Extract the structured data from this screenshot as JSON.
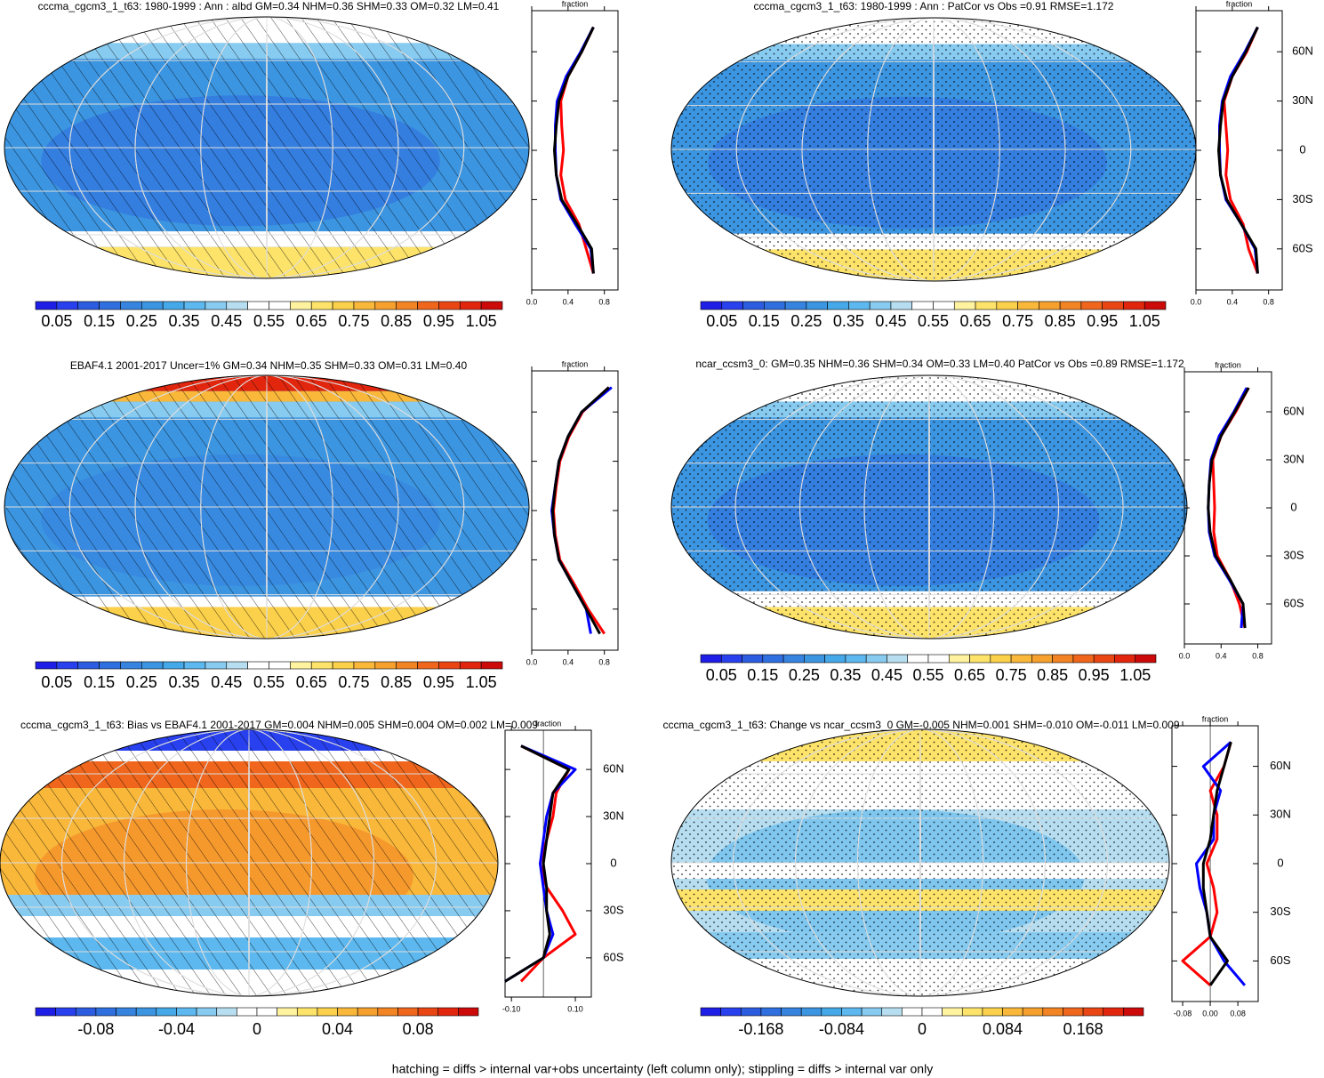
{
  "palette": [
    "#1e1ee6",
    "#2840ee",
    "#2c5ce0",
    "#2f6fe0",
    "#3684e0",
    "#3c95e0",
    "#45a8e8",
    "#5cb8ef",
    "#88cbf0",
    "#b7def0",
    "#ffffff",
    "#ffffff",
    "#fff3a0",
    "#fde36a",
    "#fbd04a",
    "#f9b83a",
    "#f6a02e",
    "#f38424",
    "#ef661c",
    "#ea4614",
    "#e2260e",
    "#cc0a0a"
  ],
  "footnote": "hatching = diffs > internal var+obs uncertainty (left column only); stippling = diffs > internal var only",
  "chart_data": [
    {
      "type": "map_profile",
      "title": "cccma_cgcm3_1_t63: 1980-1999 : Ann : albd GM=0.34 NHM=0.36 SHM=0.33 OM=0.32 LM=0.41",
      "colorbar": {
        "lim": [
          0,
          1.1
        ],
        "ticks": [
          0.05,
          0.15,
          0.25,
          0.35,
          0.45,
          0.55,
          0.65,
          0.75,
          0.85,
          0.95,
          1.05
        ]
      },
      "xlabel": "fraction",
      "xlim": [
        0,
        0.95
      ],
      "xticks": [
        {
          "value": 0,
          "label": "0.0"
        },
        0.4,
        0.8
      ],
      "ylim": [
        -85,
        85
      ],
      "yticks": [
        60,
        30,
        0,
        -30,
        -60
      ],
      "ytick_labels_shown": false,
      "y": [
        -75,
        -60,
        -45,
        -30,
        -15,
        0,
        15,
        30,
        45,
        60,
        75
      ],
      "series": [
        {
          "color": "#ff0000",
          "values": [
            0.68,
            0.6,
            0.52,
            0.37,
            0.32,
            0.35,
            0.33,
            0.32,
            0.4,
            0.55,
            0.68
          ]
        },
        {
          "color": "#0000ff",
          "values": [
            0.68,
            0.65,
            0.48,
            0.32,
            0.27,
            0.26,
            0.26,
            0.28,
            0.38,
            0.54,
            0.68
          ]
        },
        {
          "color": "#000000",
          "values": [
            0.68,
            0.66,
            0.5,
            0.33,
            0.27,
            0.25,
            0.27,
            0.3,
            0.4,
            0.55,
            0.68
          ]
        }
      ]
    },
    {
      "type": "map_profile",
      "title": "cccma_cgcm3_1_t63: 1980-1999 : Ann : PatCor vs Obs =0.91 RMSE=1.172",
      "colorbar": {
        "lim": [
          0,
          1.1
        ],
        "ticks": [
          0.05,
          0.15,
          0.25,
          0.35,
          0.45,
          0.55,
          0.65,
          0.75,
          0.85,
          0.95,
          1.05
        ]
      },
      "xlabel": "fraction",
      "xlim": [
        0,
        0.95
      ],
      "xticks": [
        {
          "value": 0,
          "label": "0.0"
        },
        0.4,
        0.8
      ],
      "ylim": [
        -85,
        85
      ],
      "yticks": [
        {
          "value": 60,
          "label": "60N"
        },
        {
          "value": 30,
          "label": "30N"
        },
        0,
        {
          "value": -30,
          "label": "30S"
        },
        {
          "value": -60,
          "label": "60S"
        }
      ],
      "ytick_labels_shown": true,
      "y": [
        -75,
        -60,
        -45,
        -30,
        -15,
        0,
        15,
        30,
        45,
        60,
        75
      ],
      "series": [
        {
          "color": "#ff0000",
          "values": [
            0.68,
            0.58,
            0.52,
            0.38,
            0.33,
            0.35,
            0.33,
            0.31,
            0.4,
            0.56,
            0.68
          ]
        },
        {
          "color": "#0000ff",
          "values": [
            0.68,
            0.65,
            0.5,
            0.33,
            0.27,
            0.26,
            0.26,
            0.29,
            0.38,
            0.54,
            0.68
          ]
        },
        {
          "color": "#000000",
          "values": [
            0.68,
            0.66,
            0.5,
            0.34,
            0.27,
            0.25,
            0.27,
            0.3,
            0.4,
            0.55,
            0.68
          ]
        }
      ]
    },
    {
      "type": "map_profile",
      "title": "EBAF4.1 2001-2017 Uncer=1% GM=0.34 NHM=0.35 SHM=0.33 OM=0.31 LM=0.40",
      "colorbar": {
        "lim": [
          0,
          1.1
        ],
        "ticks": [
          0.05,
          0.15,
          0.25,
          0.35,
          0.45,
          0.55,
          0.65,
          0.75,
          0.85,
          0.95,
          1.05
        ]
      },
      "xlabel": "fraction",
      "xlim": [
        0,
        0.95
      ],
      "xticks": [
        {
          "value": 0,
          "label": "0.0"
        },
        0.4,
        0.8
      ],
      "ylim": [
        -85,
        85
      ],
      "yticks": [
        60,
        30,
        0,
        -30,
        -60
      ],
      "ytick_labels_shown": false,
      "y": [
        -75,
        -60,
        -45,
        -30,
        -15,
        0,
        15,
        30,
        45,
        60,
        75
      ],
      "series": [
        {
          "color": "#ff0000",
          "values": [
            0.8,
            0.62,
            0.47,
            0.31,
            0.26,
            0.24,
            0.27,
            0.31,
            0.41,
            0.56,
            0.85
          ]
        },
        {
          "color": "#0000ff",
          "values": [
            0.65,
            0.6,
            0.45,
            0.3,
            0.25,
            0.22,
            0.26,
            0.3,
            0.4,
            0.55,
            0.88
          ]
        },
        {
          "color": "#000000",
          "values": [
            0.75,
            0.6,
            0.45,
            0.3,
            0.25,
            0.23,
            0.26,
            0.3,
            0.4,
            0.55,
            0.85
          ]
        }
      ]
    },
    {
      "type": "map_profile",
      "title": "ncar_ccsm3_0: GM=0.35 NHM=0.36 SHM=0.34 OM=0.33 LM=0.40 PatCor vs Obs =0.89 RMSE=1.172",
      "colorbar": {
        "lim": [
          0,
          1.1
        ],
        "ticks": [
          0.05,
          0.15,
          0.25,
          0.35,
          0.45,
          0.55,
          0.65,
          0.75,
          0.85,
          0.95,
          1.05
        ]
      },
      "xlabel": "fraction",
      "xlim": [
        0,
        0.95
      ],
      "xticks": [
        {
          "value": 0,
          "label": "0.0"
        },
        0.4,
        0.8
      ],
      "ylim": [
        -85,
        85
      ],
      "yticks": [
        {
          "value": 60,
          "label": "60N"
        },
        {
          "value": 30,
          "label": "30N"
        },
        0,
        {
          "value": -30,
          "label": "30S"
        },
        {
          "value": -60,
          "label": "60S"
        }
      ],
      "ytick_labels_shown": true,
      "y": [
        -75,
        -60,
        -45,
        -30,
        -15,
        0,
        15,
        30,
        45,
        60,
        75
      ],
      "series": [
        {
          "color": "#ff0000",
          "values": [
            0.66,
            0.6,
            0.5,
            0.36,
            0.32,
            0.33,
            0.32,
            0.31,
            0.4,
            0.56,
            0.7
          ]
        },
        {
          "color": "#0000ff",
          "values": [
            0.62,
            0.64,
            0.49,
            0.33,
            0.27,
            0.26,
            0.27,
            0.29,
            0.38,
            0.54,
            0.68
          ]
        },
        {
          "color": "#000000",
          "values": [
            0.66,
            0.64,
            0.5,
            0.34,
            0.28,
            0.26,
            0.27,
            0.3,
            0.4,
            0.55,
            0.7
          ]
        }
      ]
    },
    {
      "type": "map_profile",
      "title": "cccma_cgcm3_1_t63: Bias vs EBAF4.1 2001-2017 GM=0.004 NHM=0.005 SHM=0.004 OM=0.002 LM=0.009",
      "colorbar": {
        "lim": [
          -0.11,
          0.11
        ],
        "ticks": [
          -0.08,
          -0.04,
          0,
          0.04,
          0.08
        ]
      },
      "xlabel": "fraction",
      "xlim": [
        -0.12,
        0.15
      ],
      "xticks": [
        {
          "value": -0.1,
          "label": "-0.10"
        },
        {
          "value": 0.1,
          "label": "0.10"
        }
      ],
      "ylim": [
        -85,
        85
      ],
      "yticks": [
        {
          "value": 60,
          "label": "60N"
        },
        {
          "value": 30,
          "label": "30N"
        },
        0,
        {
          "value": -30,
          "label": "30S"
        },
        {
          "value": -60,
          "label": "60S"
        }
      ],
      "ytick_labels_shown": true,
      "y": [
        -75,
        -60,
        -45,
        -30,
        -15,
        0,
        15,
        30,
        45,
        60,
        75
      ],
      "series": [
        {
          "color": "#ff0000",
          "values": [
            -0.07,
            0.0,
            0.1,
            0.06,
            0.01,
            -0.01,
            0.01,
            0.03,
            0.04,
            0.08,
            -0.07
          ]
        },
        {
          "color": "#0000ff",
          "values": [
            -0.12,
            0.0,
            0.03,
            0.01,
            0.0,
            -0.01,
            0.0,
            0.01,
            0.03,
            0.1,
            -0.07
          ]
        },
        {
          "color": "#000000",
          "values": [
            -0.12,
            0.0,
            0.02,
            0.01,
            0.01,
            0.0,
            0.01,
            0.02,
            0.03,
            0.08,
            -0.07
          ]
        }
      ]
    },
    {
      "type": "map_profile",
      "title": "cccma_cgcm3_1_t63: Change vs ncar_ccsm3_0 GM=-0.005 NHM=0.001 SHM=-0.010 OM=-0.011 LM=0.009",
      "colorbar": {
        "lim": [
          -0.231,
          0.231
        ],
        "ticks": [
          -0.168,
          -0.084,
          0,
          0.084,
          0.168
        ]
      },
      "xlabel": "fraction",
      "xlim": [
        -0.111,
        0.139
      ],
      "xticks": [
        -0.08,
        {
          "value": 0,
          "label": "0.00"
        },
        0.08
      ],
      "ylim": [
        -85,
        85
      ],
      "yticks": [
        {
          "value": 60,
          "label": "60N"
        },
        {
          "value": 30,
          "label": "30N"
        },
        0,
        {
          "value": -30,
          "label": "30S"
        },
        {
          "value": -60,
          "label": "60S"
        }
      ],
      "ytick_labels_shown": true,
      "y": [
        -75,
        -60,
        -45,
        -30,
        -15,
        0,
        15,
        30,
        45,
        60,
        75
      ],
      "series": [
        {
          "color": "#ff0000",
          "values": [
            0.0,
            -0.08,
            0.0,
            0.02,
            0.01,
            -0.01,
            0.02,
            0.02,
            0.0,
            0.04,
            0.06
          ]
        },
        {
          "color": "#0000ff",
          "values": [
            0.1,
            0.04,
            0.0,
            -0.01,
            -0.03,
            -0.04,
            0.01,
            0.01,
            0.03,
            -0.02,
            0.06
          ]
        },
        {
          "color": "#000000",
          "values": [
            0.0,
            0.05,
            0.0,
            -0.01,
            -0.02,
            -0.02,
            0.0,
            0.01,
            0.02,
            0.04,
            0.06
          ]
        }
      ]
    }
  ]
}
